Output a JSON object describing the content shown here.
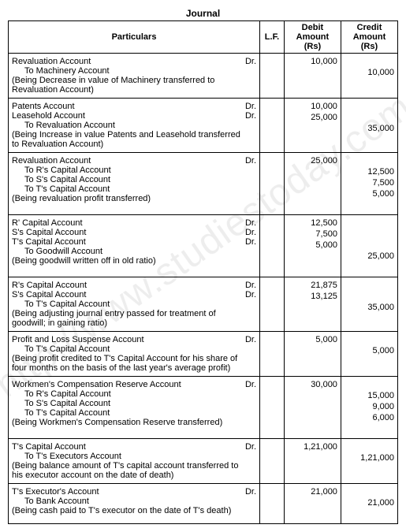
{
  "title": "Journal",
  "headers": {
    "particulars": "Particulars",
    "lf": "L.F.",
    "debit": "Debit Amount (Rs)",
    "credit": "Credit Amount (Rs)"
  },
  "watermark": "http://www.studiestoday.com",
  "entries": [
    {
      "lines": [
        {
          "text": "Revaluation Account",
          "dr": "Dr.",
          "indent": false
        },
        {
          "text": "To Machinery Account",
          "dr": "",
          "indent": true
        },
        {
          "text": "(Being Decrease in value of Machinery transferred to Revaluation Account)",
          "dr": "",
          "indent": false
        }
      ],
      "debits": [
        "10,000",
        "",
        ""
      ],
      "credits": [
        "",
        "10,000",
        ""
      ]
    },
    {
      "lines": [
        {
          "text": "Patents Account",
          "dr": "Dr.",
          "indent": false
        },
        {
          "text": "Leasehold Account",
          "dr": "Dr.",
          "indent": false
        },
        {
          "text": "To Revaluation Account",
          "dr": "",
          "indent": true
        },
        {
          "text": "(Being Increase in value Patents and Leasehold transferred to Revaluation Account)",
          "dr": "",
          "indent": false
        }
      ],
      "debits": [
        "10,000",
        "25,000",
        "",
        ""
      ],
      "credits": [
        "",
        "",
        "35,000",
        ""
      ]
    },
    {
      "lines": [
        {
          "text": "Revaluation Account",
          "dr": "Dr.",
          "indent": false
        },
        {
          "text": "To R's Capital Account",
          "dr": "",
          "indent": true
        },
        {
          "text": "To S's Capital Account",
          "dr": "",
          "indent": true
        },
        {
          "text": "To T's Capital Account",
          "dr": "",
          "indent": true
        },
        {
          "text": "(Being revaluation profit transferred)",
          "dr": "",
          "indent": false
        }
      ],
      "debits": [
        "25,000",
        "",
        "",
        "",
        ""
      ],
      "credits": [
        "",
        "12,500",
        "7,500",
        "5,000",
        ""
      ]
    },
    {
      "lines": [
        {
          "text": "R' Capital Account",
          "dr": "Dr.",
          "indent": false
        },
        {
          "text": "S's Capital Account",
          "dr": "Dr.",
          "indent": false
        },
        {
          "text": "T's Capital Account",
          "dr": "Dr.",
          "indent": false
        },
        {
          "text": "To Goodwill Account",
          "dr": "",
          "indent": true
        },
        {
          "text": "(Being goodwill written off in old ratio)",
          "dr": "",
          "indent": false
        }
      ],
      "debits": [
        "12,500",
        "7,500",
        "5,000",
        "",
        ""
      ],
      "credits": [
        "",
        "",
        "",
        "25,000",
        ""
      ]
    },
    {
      "lines": [
        {
          "text": "R's Capital Account",
          "dr": "Dr.",
          "indent": false
        },
        {
          "text": "S's Capital Account",
          "dr": "Dr.",
          "indent": false
        },
        {
          "text": "To T's Capital Account",
          "dr": "",
          "indent": true
        },
        {
          "text": "(Being adjusting journal entry passed for treatment of goodwill; in gaining ratio)",
          "dr": "",
          "indent": false
        }
      ],
      "debits": [
        "21,875",
        "13,125",
        "",
        ""
      ],
      "credits": [
        "",
        "",
        "35,000",
        ""
      ]
    },
    {
      "lines": [
        {
          "text": "Profit and Loss Suspense Account",
          "dr": "Dr.",
          "indent": false
        },
        {
          "text": "To T's Capital Account",
          "dr": "",
          "indent": true
        },
        {
          "text": "(Being profit credited to T's Capital Account for his share of four months on the basis of the last year's average profit)",
          "dr": "",
          "indent": false
        }
      ],
      "debits": [
        "5,000",
        "",
        ""
      ],
      "credits": [
        "",
        "5,000",
        ""
      ]
    },
    {
      "lines": [
        {
          "text": "Workmen's Compensation Reserve Account",
          "dr": "Dr.",
          "indent": false
        },
        {
          "text": "To R's Capital Account",
          "dr": "",
          "indent": true
        },
        {
          "text": "To S's Capital Account",
          "dr": "",
          "indent": true
        },
        {
          "text": "To T's Capital Account",
          "dr": "",
          "indent": true
        },
        {
          "text": "(Being Workmen's Compensation Reserve transferred)",
          "dr": "",
          "indent": false
        }
      ],
      "debits": [
        "30,000",
        "",
        "",
        "",
        ""
      ],
      "credits": [
        "",
        "15,000",
        "9,000",
        "6,000",
        ""
      ]
    },
    {
      "lines": [
        {
          "text": "T's Capital Account",
          "dr": "Dr.",
          "indent": false
        },
        {
          "text": "To T's Executors Account",
          "dr": "",
          "indent": true
        },
        {
          "text": "(Being balance amount of T's capital account transferred to his executor account on the date of death)",
          "dr": "",
          "indent": false
        }
      ],
      "debits": [
        "1,21,000",
        "",
        ""
      ],
      "credits": [
        "",
        "1,21,000",
        ""
      ]
    },
    {
      "lines": [
        {
          "text": "T's Executor's Account",
          "dr": "Dr.",
          "indent": false
        },
        {
          "text": "To Bank Account",
          "dr": "",
          "indent": true
        },
        {
          "text": "(Being cash paid to T's executor on the date of T's death)",
          "dr": "",
          "indent": false
        }
      ],
      "debits": [
        "21,000",
        "",
        ""
      ],
      "credits": [
        "",
        "21,000",
        ""
      ]
    }
  ]
}
